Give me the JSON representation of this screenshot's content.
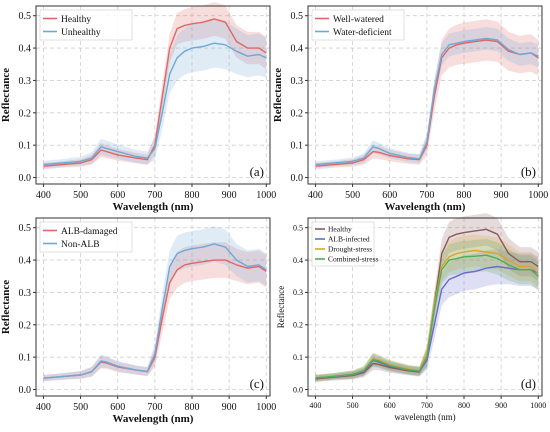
{
  "chart_data": [
    {
      "type": "area",
      "panel_label": "(a)",
      "xlabel": "Wavelength (nm)",
      "ylabel": "Reflectance",
      "xlim": [
        380,
        1010
      ],
      "ylim": [
        -0.02,
        0.53
      ],
      "xticks": [
        400,
        500,
        600,
        700,
        800,
        900,
        1000
      ],
      "yticks": [
        0.0,
        0.1,
        0.2,
        0.3,
        0.4,
        0.5
      ],
      "grid": true,
      "legend_position": "top-left",
      "x": [
        400,
        450,
        500,
        530,
        555,
        570,
        600,
        650,
        680,
        700,
        720,
        740,
        760,
        780,
        800,
        830,
        860,
        890,
        920,
        950,
        980,
        1000
      ],
      "series": [
        {
          "name": "Healthy",
          "color": "#e06666",
          "values": [
            0.035,
            0.04,
            0.045,
            0.055,
            0.085,
            0.08,
            0.07,
            0.06,
            0.055,
            0.1,
            0.25,
            0.4,
            0.46,
            0.47,
            0.475,
            0.48,
            0.49,
            0.48,
            0.42,
            0.4,
            0.4,
            0.385
          ],
          "band": [
            0.01,
            0.01,
            0.012,
            0.015,
            0.022,
            0.02,
            0.018,
            0.016,
            0.016,
            0.03,
            0.04,
            0.045,
            0.048,
            0.05,
            0.052,
            0.052,
            0.052,
            0.052,
            0.05,
            0.05,
            0.05,
            0.05
          ]
        },
        {
          "name": "Unhealthy",
          "color": "#6ea8d6",
          "values": [
            0.04,
            0.045,
            0.05,
            0.06,
            0.095,
            0.09,
            0.08,
            0.065,
            0.06,
            0.09,
            0.2,
            0.32,
            0.37,
            0.39,
            0.4,
            0.405,
            0.415,
            0.41,
            0.39,
            0.375,
            0.38,
            0.37
          ],
          "band": [
            0.012,
            0.012,
            0.014,
            0.018,
            0.025,
            0.024,
            0.022,
            0.02,
            0.02,
            0.035,
            0.05,
            0.06,
            0.07,
            0.072,
            0.075,
            0.075,
            0.075,
            0.075,
            0.07,
            0.065,
            0.065,
            0.06
          ]
        }
      ]
    },
    {
      "type": "area",
      "panel_label": "(b)",
      "xlabel": "Wavelength (nm)",
      "ylabel": "Reflectance",
      "xlim": [
        380,
        1010
      ],
      "ylim": [
        -0.02,
        0.53
      ],
      "xticks": [
        400,
        500,
        600,
        700,
        800,
        900,
        1000
      ],
      "yticks": [
        0.0,
        0.1,
        0.2,
        0.3,
        0.4,
        0.5
      ],
      "grid": true,
      "legend_position": "top-left",
      "x": [
        400,
        450,
        500,
        530,
        555,
        570,
        600,
        650,
        680,
        700,
        720,
        740,
        760,
        780,
        800,
        830,
        860,
        890,
        920,
        950,
        980,
        1000
      ],
      "series": [
        {
          "name": "Well-watered",
          "color": "#e06666",
          "values": [
            0.035,
            0.04,
            0.045,
            0.055,
            0.08,
            0.078,
            0.068,
            0.058,
            0.055,
            0.1,
            0.25,
            0.37,
            0.4,
            0.41,
            0.415,
            0.42,
            0.425,
            0.42,
            0.39,
            0.38,
            0.385,
            0.37
          ],
          "band": [
            0.01,
            0.01,
            0.012,
            0.015,
            0.022,
            0.02,
            0.018,
            0.016,
            0.016,
            0.03,
            0.045,
            0.055,
            0.06,
            0.062,
            0.064,
            0.064,
            0.064,
            0.062,
            0.06,
            0.058,
            0.058,
            0.055
          ]
        },
        {
          "name": "Water-deficient",
          "color": "#6ea8d6",
          "values": [
            0.04,
            0.045,
            0.05,
            0.06,
            0.095,
            0.09,
            0.075,
            0.062,
            0.058,
            0.11,
            0.27,
            0.38,
            0.41,
            0.415,
            0.42,
            0.425,
            0.43,
            0.425,
            0.395,
            0.38,
            0.385,
            0.375
          ],
          "band": [
            0.01,
            0.01,
            0.012,
            0.015,
            0.02,
            0.018,
            0.016,
            0.014,
            0.014,
            0.025,
            0.035,
            0.035,
            0.035,
            0.035,
            0.035,
            0.035,
            0.035,
            0.035,
            0.035,
            0.035,
            0.035,
            0.035
          ]
        }
      ]
    },
    {
      "type": "area",
      "panel_label": "(c)",
      "xlabel": "Wavelength (nm)",
      "ylabel": "Reflectance",
      "xlim": [
        380,
        1010
      ],
      "ylim": [
        -0.02,
        0.53
      ],
      "xticks": [
        400,
        500,
        600,
        700,
        800,
        900,
        1000
      ],
      "yticks": [
        0.0,
        0.1,
        0.2,
        0.3,
        0.4,
        0.5
      ],
      "grid": true,
      "legend_position": "top-left",
      "x": [
        400,
        450,
        500,
        530,
        555,
        570,
        600,
        650,
        680,
        700,
        720,
        740,
        760,
        780,
        800,
        830,
        860,
        890,
        920,
        950,
        980,
        1000
      ],
      "series": [
        {
          "name": "ALB-damaged",
          "color": "#e06666",
          "values": [
            0.035,
            0.04,
            0.045,
            0.055,
            0.085,
            0.082,
            0.07,
            0.06,
            0.055,
            0.1,
            0.22,
            0.33,
            0.37,
            0.385,
            0.39,
            0.395,
            0.4,
            0.4,
            0.385,
            0.375,
            0.38,
            0.365
          ],
          "band": [
            0.01,
            0.01,
            0.012,
            0.015,
            0.02,
            0.018,
            0.016,
            0.014,
            0.014,
            0.03,
            0.045,
            0.05,
            0.055,
            0.055,
            0.055,
            0.055,
            0.055,
            0.055,
            0.05,
            0.05,
            0.05,
            0.05
          ]
        },
        {
          "name": "Non-ALB",
          "color": "#6ea8d6",
          "values": [
            0.035,
            0.04,
            0.045,
            0.055,
            0.088,
            0.085,
            0.072,
            0.06,
            0.056,
            0.11,
            0.25,
            0.38,
            0.42,
            0.43,
            0.435,
            0.44,
            0.45,
            0.44,
            0.4,
            0.38,
            0.385,
            0.37
          ],
          "band": [
            0.01,
            0.01,
            0.012,
            0.015,
            0.02,
            0.018,
            0.016,
            0.014,
            0.014,
            0.03,
            0.045,
            0.05,
            0.055,
            0.055,
            0.055,
            0.055,
            0.055,
            0.055,
            0.05,
            0.05,
            0.05,
            0.05
          ]
        }
      ]
    },
    {
      "type": "area",
      "panel_label": "(d)",
      "xlabel": "wavelength (nm)",
      "ylabel": "Reflectance",
      "xlim": [
        380,
        1010
      ],
      "ylim": [
        -0.02,
        0.53
      ],
      "xticks": [
        400,
        500,
        600,
        700,
        800,
        900,
        1000
      ],
      "yticks": [
        0.0,
        0.1,
        0.2,
        0.3,
        0.4,
        0.5
      ],
      "grid": true,
      "legend_position": "top-left",
      "x": [
        400,
        450,
        500,
        530,
        555,
        570,
        600,
        650,
        680,
        700,
        720,
        740,
        760,
        780,
        800,
        830,
        860,
        890,
        920,
        950,
        980,
        1000
      ],
      "series": [
        {
          "name": "Healthy",
          "color": "#8b5a5a",
          "values": [
            0.033,
            0.038,
            0.043,
            0.052,
            0.08,
            0.078,
            0.068,
            0.058,
            0.054,
            0.1,
            0.26,
            0.42,
            0.47,
            0.48,
            0.485,
            0.49,
            0.495,
            0.48,
            0.42,
            0.395,
            0.395,
            0.38
          ],
          "band": [
            0.01,
            0.01,
            0.012,
            0.014,
            0.02,
            0.018,
            0.016,
            0.014,
            0.014,
            0.03,
            0.04,
            0.045,
            0.048,
            0.05,
            0.05,
            0.05,
            0.05,
            0.05,
            0.048,
            0.045,
            0.045,
            0.045
          ]
        },
        {
          "name": "ALB-infected",
          "color": "#6a6ad0",
          "values": [
            0.035,
            0.04,
            0.045,
            0.055,
            0.09,
            0.085,
            0.072,
            0.06,
            0.056,
            0.09,
            0.2,
            0.31,
            0.34,
            0.35,
            0.36,
            0.365,
            0.375,
            0.38,
            0.375,
            0.37,
            0.37,
            0.36
          ],
          "band": [
            0.01,
            0.01,
            0.012,
            0.014,
            0.02,
            0.018,
            0.016,
            0.014,
            0.014,
            0.03,
            0.045,
            0.05,
            0.055,
            0.055,
            0.055,
            0.055,
            0.055,
            0.055,
            0.05,
            0.05,
            0.05,
            0.05
          ]
        },
        {
          "name": "Drought-stress",
          "color": "#e0a030",
          "values": [
            0.036,
            0.041,
            0.047,
            0.058,
            0.095,
            0.09,
            0.076,
            0.063,
            0.058,
            0.11,
            0.26,
            0.38,
            0.41,
            0.42,
            0.425,
            0.43,
            0.425,
            0.42,
            0.4,
            0.38,
            0.38,
            0.36
          ],
          "band": [
            0.01,
            0.01,
            0.012,
            0.014,
            0.02,
            0.018,
            0.016,
            0.014,
            0.014,
            0.03,
            0.04,
            0.045,
            0.048,
            0.05,
            0.05,
            0.05,
            0.05,
            0.05,
            0.048,
            0.045,
            0.045,
            0.045
          ]
        },
        {
          "name": "Combined-stress",
          "color": "#4caf50",
          "values": [
            0.036,
            0.041,
            0.047,
            0.058,
            0.092,
            0.088,
            0.074,
            0.061,
            0.057,
            0.1,
            0.25,
            0.37,
            0.4,
            0.405,
            0.41,
            0.412,
            0.415,
            0.405,
            0.385,
            0.37,
            0.37,
            0.35
          ],
          "band": [
            0.01,
            0.01,
            0.012,
            0.014,
            0.02,
            0.018,
            0.016,
            0.014,
            0.014,
            0.03,
            0.04,
            0.045,
            0.048,
            0.05,
            0.05,
            0.05,
            0.05,
            0.05,
            0.048,
            0.045,
            0.045,
            0.045
          ]
        }
      ]
    }
  ]
}
